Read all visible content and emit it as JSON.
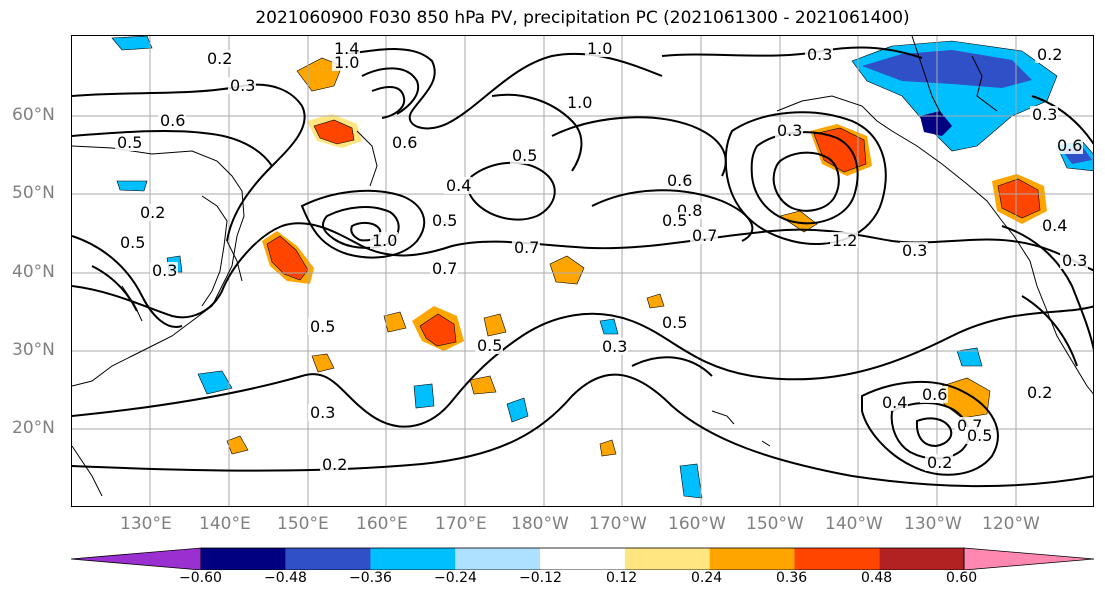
{
  "title": "2021060900 F030 850 hPa PV, precipitation PC (2021061300 - 2021061400)",
  "map": {
    "latitude_labels": [
      "60°N",
      "50°N",
      "40°N",
      "30°N",
      "20°N"
    ],
    "longitude_labels": [
      "130°E",
      "140°E",
      "150°E",
      "160°E",
      "170°E",
      "180°W",
      "170°W",
      "160°W",
      "150°W",
      "140°W",
      "130°W",
      "120°W"
    ],
    "contour_labels": [
      "1.4",
      "1.0",
      "0.2",
      "0.3",
      "1.0",
      "0.3",
      "0.2",
      "0.3",
      "0.5",
      "0.6",
      "0.4",
      "1.0",
      "0.6",
      "0.5",
      "0.2",
      "0.5",
      "0.7",
      "0.5",
      "1.0",
      "0.7",
      "0.6",
      "0.8",
      "0.5",
      "0.7",
      "0.3",
      "1.2",
      "0.3",
      "0.5",
      "0.3",
      "0.5",
      "0.5",
      "0.3",
      "0.3",
      "0.2",
      "0.4",
      "0.6",
      "0.7",
      "0.5",
      "0.2",
      "0.2",
      "0.3",
      "0.4",
      "0.6"
    ],
    "contour_color": "#000000",
    "gridline_color": "#aaaaaa",
    "coastline_color": "#000000"
  },
  "colorbar": {
    "colors": [
      "#9b30d0",
      "#000080",
      "#3050c8",
      "#00bfff",
      "#aee0ff",
      "#ffffff",
      "#ffe680",
      "#ffa500",
      "#ff4500",
      "#b22222",
      "#ff88b0"
    ],
    "tick_labels": [
      "−0.60",
      "−0.48",
      "−0.36",
      "−0.24",
      "−0.12",
      "0.12",
      "0.24",
      "0.36",
      "0.48",
      "0.60"
    ]
  }
}
